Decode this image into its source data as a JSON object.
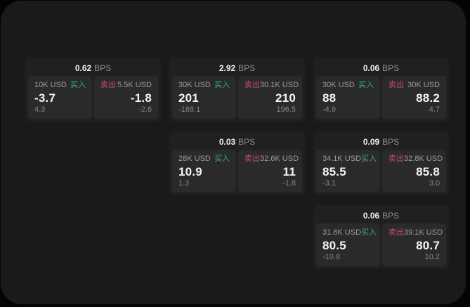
{
  "theme": {
    "page_bg": "#040405",
    "panel_bg": "#1a1a1c",
    "card_bg": "#202022",
    "tile_bg": "#2a2a2c",
    "text_primary": "#f4f4f5",
    "text_secondary": "#9b9b9f",
    "buy_green": "#3fae68",
    "sell_red": "#d14b64"
  },
  "cards": [
    {
      "bps_value": "0.62",
      "bps_unit": "BPS",
      "buy": {
        "amount": "10K USD",
        "label": "买入",
        "price": "-3.7",
        "change": "4.3"
      },
      "sell": {
        "label": "卖出",
        "amount": "5.5K USD",
        "price": "-1.8",
        "change": "-2.6"
      }
    },
    {
      "bps_value": "2.92",
      "bps_unit": "BPS",
      "buy": {
        "amount": "30K USD",
        "label": "买入",
        "price": "201",
        "change": "-188.1"
      },
      "sell": {
        "label": "卖出",
        "amount": "30.1K USD",
        "price": "210",
        "change": "196.5"
      }
    },
    {
      "bps_value": "0.06",
      "bps_unit": "BPS",
      "buy": {
        "amount": "30K USD",
        "label": "买入",
        "price": "88",
        "change": "-4.9"
      },
      "sell": {
        "label": "卖出",
        "amount": "30K USD",
        "price": "88.2",
        "change": "4.7"
      }
    },
    {
      "bps_value": "0.03",
      "bps_unit": "BPS",
      "buy": {
        "amount": "28K USD",
        "label": "买入",
        "price": "10.9",
        "change": "1.3"
      },
      "sell": {
        "label": "卖出",
        "amount": "32.6K USD",
        "price": "11",
        "change": "-1.8"
      }
    },
    {
      "bps_value": "0.09",
      "bps_unit": "BPS",
      "buy": {
        "amount": "34.1K USD",
        "label": "买入",
        "price": "85.5",
        "change": "-3.1"
      },
      "sell": {
        "label": "卖出",
        "amount": "32.8K USD",
        "price": "85.8",
        "change": "3.0"
      }
    },
    {
      "bps_value": "0.06",
      "bps_unit": "BPS",
      "buy": {
        "amount": "31.8K USD",
        "label": "买入",
        "price": "80.5",
        "change": "-10.8"
      },
      "sell": {
        "label": "卖出",
        "amount": "39.1K USD",
        "price": "80.7",
        "change": "10.2"
      }
    }
  ]
}
